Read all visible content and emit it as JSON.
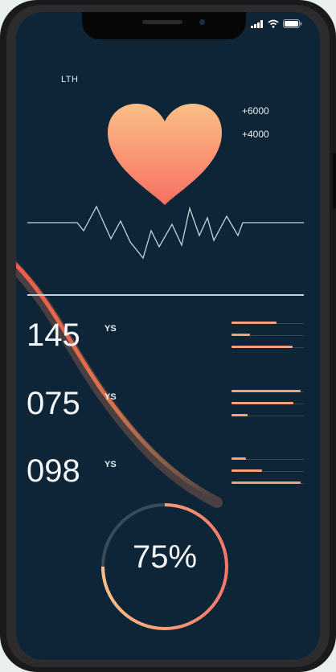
{
  "header": {
    "label": "LTH",
    "stat_top": "+6000",
    "stat_bottom": "+4000"
  },
  "metrics": [
    {
      "value": "145",
      "unit": "YS",
      "bars": [
        0.62,
        0.26,
        0.84
      ]
    },
    {
      "value": "075",
      "unit": "YS",
      "bars": [
        0.95,
        0.85,
        0.22
      ]
    },
    {
      "value": "098",
      "unit": "YS",
      "bars": [
        0.2,
        0.42,
        0.95
      ]
    }
  ],
  "progress": {
    "value": 0.75,
    "label": "75%"
  },
  "colors": {
    "screen_bg": "#0d2537",
    "heart_top": "#fbbf86",
    "heart_bottom": "#f86f63",
    "accent": "#f2a27f",
    "ring_track": "#3a4a56"
  },
  "icons": [
    "heart-icon",
    "signal-icon",
    "wifi-icon",
    "battery-icon"
  ]
}
